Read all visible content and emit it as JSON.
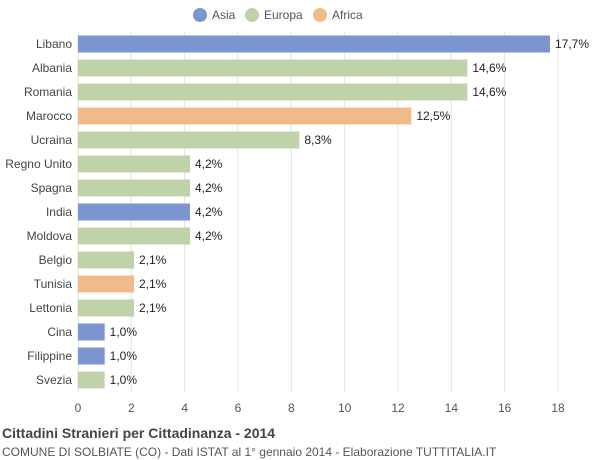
{
  "colors": {
    "Asia": "#7b96cf",
    "Europa": "#bed1a9",
    "Africa": "#f0bb89"
  },
  "chart_data": {
    "type": "bar",
    "orientation": "horizontal",
    "title": "Cittadini Stranieri per Cittadinanza - 2014",
    "subtitle": "COMUNE DI SOLBIATE (CO) - Dati ISTAT al 1° gennaio 2014 - Elaborazione TUTTITALIA.IT",
    "legend": {
      "position": "top-center",
      "entries": [
        "Asia",
        "Europa",
        "Africa"
      ]
    },
    "xlim": [
      0,
      18
    ],
    "xticks": [
      "0",
      "2",
      "4",
      "6",
      "8",
      "10",
      "12",
      "14",
      "16",
      "18"
    ],
    "grid": true,
    "categories": [
      "Libano",
      "Albania",
      "Romania",
      "Marocco",
      "Ucraina",
      "Regno Unito",
      "Spagna",
      "India",
      "Moldova",
      "Belgio",
      "Tunisia",
      "Lettonia",
      "Cina",
      "Filippine",
      "Svezia"
    ],
    "values": [
      17.7,
      14.6,
      14.6,
      12.5,
      8.3,
      4.2,
      4.2,
      4.2,
      4.2,
      2.1,
      2.1,
      2.1,
      1.0,
      1.0,
      1.0
    ],
    "value_labels": [
      "17,7%",
      "14,6%",
      "14,6%",
      "12,5%",
      "8,3%",
      "4,2%",
      "4,2%",
      "4,2%",
      "4,2%",
      "2,1%",
      "2,1%",
      "2,1%",
      "1,0%",
      "1,0%",
      "1,0%"
    ],
    "groups": [
      "Asia",
      "Europa",
      "Europa",
      "Africa",
      "Europa",
      "Europa",
      "Europa",
      "Asia",
      "Europa",
      "Europa",
      "Africa",
      "Europa",
      "Asia",
      "Asia",
      "Europa"
    ]
  }
}
